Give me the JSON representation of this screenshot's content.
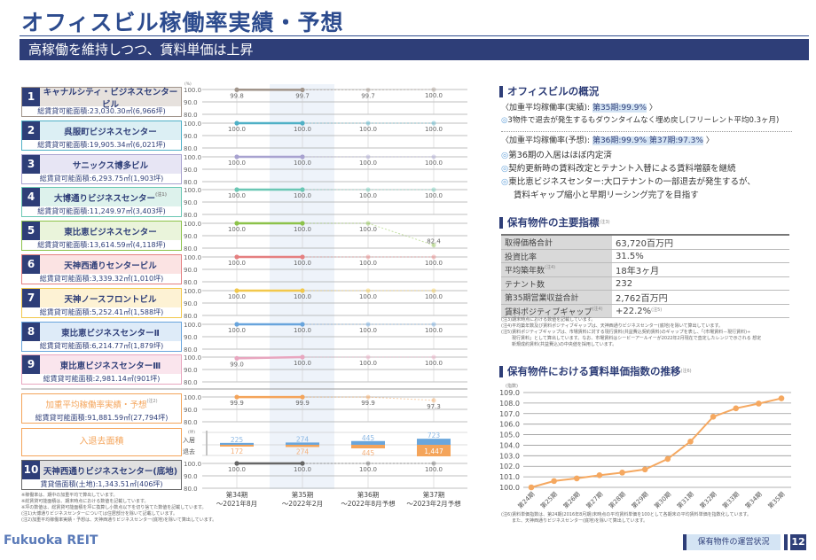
{
  "header": {
    "title": "オフィスビル稼働率実績・予想",
    "subtitle": "高稼働を維持しつつ、賃料単価は上昇"
  },
  "occupancy": {
    "unit": "(%)",
    "ticks": [
      "100.0",
      "90.0",
      "80.0"
    ],
    "periods": [
      {
        "l1": "第34期",
        "l2": "～2021年8月"
      },
      {
        "l1": "第35期",
        "l2": "～2022年2月"
      },
      {
        "l1": "第36期",
        "l2": "～2022年8月予想"
      },
      {
        "l1": "第37期",
        "l2": "～2023年2月予想"
      }
    ],
    "properties": [
      {
        "no": "1",
        "name": "キャナルシティ・ビジネスセンタービル",
        "note": "",
        "area": "総賃貸可能面積:23,030.30㎡(6,966坪)",
        "color": "#a0948a",
        "bg": "#e6e1dd",
        "values": [
          "99.8",
          "99.7",
          "99.7",
          "100.0"
        ]
      },
      {
        "no": "2",
        "name": "呉服町ビジネスセンター",
        "note": "",
        "area": "総賃貸可能面積:19,905.34㎡(6,021坪)",
        "color": "#4fb0c6",
        "bg": "#dceff4",
        "values": [
          "100.0",
          "100.0",
          "100.0",
          "100.0"
        ]
      },
      {
        "no": "3",
        "name": "サニックス博多ビル",
        "note": "",
        "area": "総賃貸可能面積:6,293.75㎡(1,903坪)",
        "color": "#a8a2d0",
        "bg": "#e7e5f4",
        "values": [
          "100.0",
          "100.0",
          "100.0",
          "100.0"
        ]
      },
      {
        "no": "4",
        "name": "大博通りビジネスセンター",
        "note": "(注1)",
        "area": "総賃貸可能面積:11,249.97㎡(3,403坪)",
        "color": "#6ac7b4",
        "bg": "#ddf2ec",
        "values": [
          "100.0",
          "100.0",
          "100.0",
          "100.0"
        ]
      },
      {
        "no": "5",
        "name": "東比恵ビジネスセンター",
        "note": "",
        "area": "総賃貸可能面積:13,614.59㎡(4,118坪)",
        "color": "#8cc24a",
        "bg": "#eaf4db",
        "values": [
          "100.0",
          "100.0",
          "100.0",
          "82.4"
        ]
      },
      {
        "no": "6",
        "name": "天神西通りセンタービル",
        "note": "",
        "area": "総賃貸可能面積:3,339.32㎡(1,010坪)",
        "color": "#e57f80",
        "bg": "#fbe3e3",
        "values": [
          "100.0",
          "100.0",
          "100.0",
          "100.0"
        ]
      },
      {
        "no": "7",
        "name": "天神ノースフロントビル",
        "note": "",
        "area": "総賃貸可能面積:5,252.41㎡(1,588坪)",
        "color": "#f2c84c",
        "bg": "#fdf2d4",
        "values": [
          "100.0",
          "100.0",
          "100.0",
          "100.0"
        ]
      },
      {
        "no": "8",
        "name": "東比恵ビジネスセンターⅡ",
        "note": "",
        "area": "総賃貸可能面積:6,214.77㎡(1,879坪)",
        "color": "#68a4dc",
        "bg": "#deebf8",
        "values": [
          "100.0",
          "100.0",
          "100.0",
          "100.0"
        ]
      },
      {
        "no": "9",
        "name": "東比恵ビジネスセンターⅢ",
        "note": "",
        "area": "総賃貸可能面積:2,981.14㎡(901坪)",
        "color": "#e8a6bf",
        "bg": "#fae5ed",
        "values": [
          "99.0",
          "100.0",
          "100.0",
          "100.0"
        ]
      }
    ],
    "average": {
      "name": "加重平均稼働率実績・予想",
      "note": "(注2)",
      "area": "総賃貸可能面積:91,881.59㎡(27,794坪)",
      "color": "#f4a45a",
      "values": [
        "99.9",
        "99.9",
        "99.9",
        "97.3"
      ]
    },
    "movement": {
      "label": "入退去面積",
      "unit": "(坪)",
      "in_label": "入居",
      "out_label": "退去",
      "in_color": "#6aa6dc",
      "out_color": "#f4a45a",
      "move_in": [
        "225",
        "274",
        "445",
        "723"
      ],
      "move_out": [
        "172",
        "274",
        "445",
        "1,447"
      ]
    },
    "land": {
      "no": "10",
      "name": "天神西通りビジネスセンター(底地)",
      "area": "賃貸借面積(土地):1,343.51㎡(406坪)",
      "color": "#666666",
      "bg": "#e0e0e0",
      "values": [
        "100.0",
        "100.0",
        "100.0",
        "100.0"
      ]
    },
    "footnotes": [
      "※稼働率は、期中の加重平均で算出しています。",
      "※総賃貸可能面積は、期末時点における数値を記載しています。",
      "※坪の数値は、総賃貸可能面積を坪に換算し小数点以下を切り捨てた数値を記載しています。",
      "(注1)大博通りビジネスセンターについては住居部分を除いて記載しています。",
      "(注2)加重平均稼働率実績・予想は、天神西通りビジネスセンター(底地)を除いて算出しています。"
    ]
  },
  "overview": {
    "heading": "オフィスビルの概況",
    "actual_label": "〈加重平均稼働率(実績):",
    "actual_value": "第35期:99.9%",
    "actual_close": "〉",
    "actual_points": [
      "3物件で退去が発生するもダウンタイムなく埋め戻し(フリーレント平均0.3ヶ月)"
    ],
    "forecast_label": "〈加重平均稼働率(予想):",
    "forecast_value": "第36期:99.9% 第37期:97.3%",
    "forecast_close": "〉",
    "forecast_points": [
      "第36期の入居はほぼ内定済",
      "契約更新時の賃料改定とテナント入替による賃料増額を継続",
      "東比恵ビジネスセンター:大口テナントの一部退去が発生するが、",
      "賃料ギャップ縮小と早期リーシング完了を目指す"
    ],
    "bullet": "◎"
  },
  "indicators": {
    "heading": "保有物件の主要指標",
    "heading_note": "(注3)",
    "rows": [
      {
        "k": "取得価格合計",
        "kn": "",
        "v": "63,720百万円",
        "vn": ""
      },
      {
        "k": "投資比率",
        "kn": "",
        "v": "31.5%",
        "vn": ""
      },
      {
        "k": "平均築年数",
        "kn": "(注4)",
        "v": "18年3ヶ月",
        "vn": ""
      },
      {
        "k": "テナント数",
        "kn": "",
        "v": "232",
        "vn": ""
      },
      {
        "k": "第35期営業収益合計",
        "kn": "",
        "v": "2,762百万円",
        "vn": ""
      },
      {
        "k": "賃料ポジティブギャップ",
        "kn": "(注4)",
        "v": "+22.2%",
        "vn": "(注5)"
      }
    ],
    "notes": [
      "(注3)期末時点における数値を記載しています。",
      "(注4)平均築年数及び賃料ポジティブギャップは、天神西通りビジネスセンター(底地)を除いて算出しています。",
      "(注5)賃料ポジティブギャップは、市場賃料に対する現行賃料(共益費込契約賃料)のギャップを表し、「(市場賃料－現行賃料)÷",
      "現行賃料」として算出しています。なお、市場賃料はシービーアールイーが2022年2月現在で査定したレンジで示される 想定",
      "新規成約賃料(共益費込)の中央値を採用しています。"
    ]
  },
  "chart_data": {
    "type": "line",
    "title": "保有物件における賃料単価指数の推移",
    "title_note": "(注6)",
    "ylabel": "(指数)",
    "categories": [
      "第24期",
      "第25期",
      "第26期",
      "第27期",
      "第28期",
      "第29期",
      "第30期",
      "第31期",
      "第32期",
      "第33期",
      "第34期",
      "第35期"
    ],
    "values": [
      100.0,
      100.6,
      100.85,
      101.15,
      101.4,
      101.7,
      102.7,
      104.35,
      106.7,
      107.5,
      107.95,
      108.45
    ],
    "ylim": [
      100,
      109
    ],
    "yticks": [
      "100.0",
      "101.0",
      "102.0",
      "103.0",
      "104.0",
      "105.0",
      "106.0",
      "107.0",
      "108.0",
      "109.0"
    ],
    "color": "#f5a860",
    "grid": true,
    "legend": "none",
    "notes": [
      "(注6)賃料単価指数は、第24期(2016年8月期)末時点の平均賃料単価を100として各期末の平均賃料単価を指数化しています。",
      "また、天神西通りビジネスセンター(底地)を除いて算出しています。"
    ]
  },
  "footer": {
    "logo": "Fukuoka REIT",
    "section": "保有物件の運営状況",
    "page": "12"
  }
}
